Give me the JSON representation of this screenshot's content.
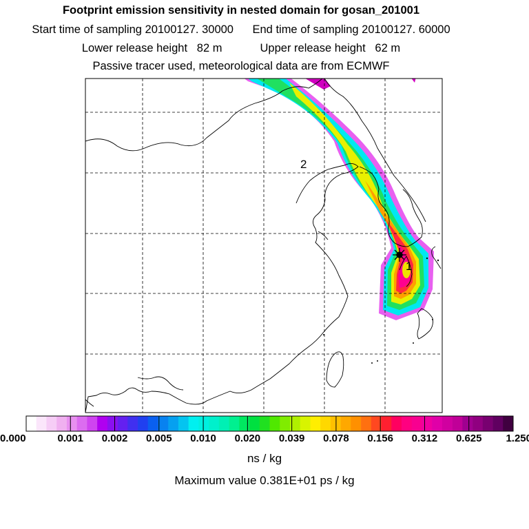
{
  "titles": {
    "line1": "Footprint emission sensitivity in nested domain for gosan_201001",
    "start": "Start time of sampling 20100127. 30000",
    "end": "End time of sampling 20100127. 60000",
    "lower": "Lower release height   82 m",
    "upper": "Upper release height   62 m",
    "line4": "Passive tracer used, meteorological data are from ECMWF"
  },
  "map": {
    "markers": [
      {
        "label": "1"
      },
      {
        "label": "2"
      }
    ]
  },
  "colorbar": {
    "ticks": [
      "0.000",
      "0.001",
      "0.002",
      "0.005",
      "0.010",
      "0.020",
      "0.039",
      "0.078",
      "0.156",
      "0.312",
      "0.625",
      "1.250"
    ],
    "colors": [
      "#ffffff",
      "#fbe6fb",
      "#f6cdf6",
      "#f0b0f0",
      "#e890f0",
      "#dc6cf0",
      "#cf44f0",
      "#b000f0",
      "#8a10f0",
      "#6420f0",
      "#4030f0",
      "#2040f0",
      "#0a60f0",
      "#0882f0",
      "#06a0f0",
      "#04c4f0",
      "#00f0f0",
      "#00f0e0",
      "#00f0cc",
      "#00f0b4",
      "#00f090",
      "#00e860",
      "#00e040",
      "#20e020",
      "#50e800",
      "#80ec00",
      "#b0f000",
      "#d8f400",
      "#ffee00",
      "#ffd800",
      "#ffc000",
      "#ffa800",
      "#ff9000",
      "#ff7010",
      "#ff4820",
      "#ff2030",
      "#ff0060",
      "#ff0080",
      "#f80090",
      "#f000a0",
      "#e000a8",
      "#d000a0",
      "#c00098",
      "#a00090",
      "#900080",
      "#780070",
      "#600060",
      "#400040"
    ],
    "unit": "ns / kg",
    "maximum": "Maximum value  0.381E+01 ps / kg"
  }
}
